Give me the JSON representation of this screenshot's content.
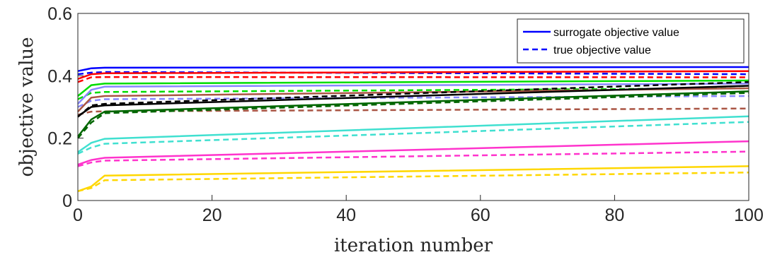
{
  "chart_data": {
    "type": "line",
    "xlabel": "iteration number",
    "ylabel": "objective value",
    "xlim": [
      0,
      100
    ],
    "ylim": [
      0,
      0.6
    ],
    "xticks": [
      0,
      20,
      40,
      60,
      80,
      100
    ],
    "yticks": [
      0,
      0.2,
      0.4,
      0.6
    ],
    "xtick_labels": [
      "0",
      "20",
      "40",
      "60",
      "80",
      "100"
    ],
    "ytick_labels": [
      "0",
      "0.2",
      "0.4",
      "0.6"
    ],
    "grid": false,
    "legend": {
      "placement": "top-right",
      "entries": [
        {
          "label": "surrogate objective value",
          "style": "solid",
          "color": "#0000ff"
        },
        {
          "label": "true objective value",
          "style": "dashed",
          "color": "#0000ff"
        }
      ]
    },
    "series": [
      {
        "color": "#0000ff",
        "surrogate": [
          [
            0,
            0.415
          ],
          [
            2,
            0.424
          ],
          [
            4,
            0.426
          ],
          [
            100,
            0.428
          ]
        ],
        "true": [
          [
            0,
            0.405
          ],
          [
            2,
            0.41
          ],
          [
            4,
            0.412
          ],
          [
            100,
            0.405
          ]
        ]
      },
      {
        "color": "#ff0000",
        "surrogate": [
          [
            0,
            0.39
          ],
          [
            2,
            0.405
          ],
          [
            4,
            0.408
          ],
          [
            100,
            0.415
          ]
        ],
        "true": [
          [
            0,
            0.38
          ],
          [
            2,
            0.395
          ],
          [
            4,
            0.396
          ],
          [
            100,
            0.395
          ]
        ]
      },
      {
        "color": "#00dd00",
        "surrogate": [
          [
            0,
            0.335
          ],
          [
            2,
            0.37
          ],
          [
            4,
            0.375
          ],
          [
            100,
            0.385
          ]
        ],
        "true": [
          [
            0,
            0.325
          ],
          [
            2,
            0.345
          ],
          [
            4,
            0.348
          ],
          [
            100,
            0.36
          ]
        ]
      },
      {
        "color": "#8888ff",
        "surrogate": [
          [
            0,
            0.31
          ],
          [
            2,
            0.355
          ],
          [
            4,
            0.365
          ],
          [
            100,
            0.375
          ]
        ],
        "true": [
          [
            0,
            0.3
          ],
          [
            2,
            0.32
          ],
          [
            4,
            0.325
          ],
          [
            100,
            0.335
          ]
        ]
      },
      {
        "color": "#aa5544",
        "surrogate": [
          [
            0,
            0.285
          ],
          [
            2,
            0.33
          ],
          [
            4,
            0.335
          ],
          [
            100,
            0.36
          ]
        ],
        "true": [
          [
            0,
            0.275
          ],
          [
            2,
            0.285
          ],
          [
            4,
            0.286
          ],
          [
            100,
            0.295
          ]
        ]
      },
      {
        "color": "#000000",
        "surrogate": [
          [
            0,
            0.27
          ],
          [
            2,
            0.3
          ],
          [
            4,
            0.305
          ],
          [
            100,
            0.368
          ]
        ],
        "true": [
          [
            0,
            0.268
          ],
          [
            2,
            0.305
          ],
          [
            4,
            0.31
          ],
          [
            100,
            0.38
          ]
        ]
      },
      {
        "color": "#006600",
        "surrogate": [
          [
            0,
            0.205
          ],
          [
            2,
            0.26
          ],
          [
            4,
            0.285
          ],
          [
            100,
            0.35
          ]
        ],
        "true": [
          [
            0,
            0.2
          ],
          [
            2,
            0.25
          ],
          [
            4,
            0.28
          ],
          [
            100,
            0.345
          ]
        ]
      },
      {
        "color": "#40e0d0",
        "surrogate": [
          [
            0,
            0.155
          ],
          [
            2,
            0.185
          ],
          [
            4,
            0.198
          ],
          [
            100,
            0.27
          ]
        ],
        "true": [
          [
            0,
            0.15
          ],
          [
            2,
            0.17
          ],
          [
            4,
            0.182
          ],
          [
            100,
            0.252
          ]
        ]
      },
      {
        "color": "#ff33cc",
        "surrogate": [
          [
            0,
            0.115
          ],
          [
            2,
            0.13
          ],
          [
            4,
            0.137
          ],
          [
            100,
            0.19
          ]
        ],
        "true": [
          [
            0,
            0.11
          ],
          [
            2,
            0.122
          ],
          [
            4,
            0.128
          ],
          [
            100,
            0.157
          ]
        ]
      },
      {
        "color": "#ffd700",
        "surrogate": [
          [
            0,
            0.03
          ],
          [
            2,
            0.045
          ],
          [
            4,
            0.08
          ],
          [
            100,
            0.11
          ]
        ],
        "true": [
          [
            0,
            0.03
          ],
          [
            2,
            0.04
          ],
          [
            4,
            0.065
          ],
          [
            100,
            0.09
          ]
        ]
      }
    ]
  }
}
